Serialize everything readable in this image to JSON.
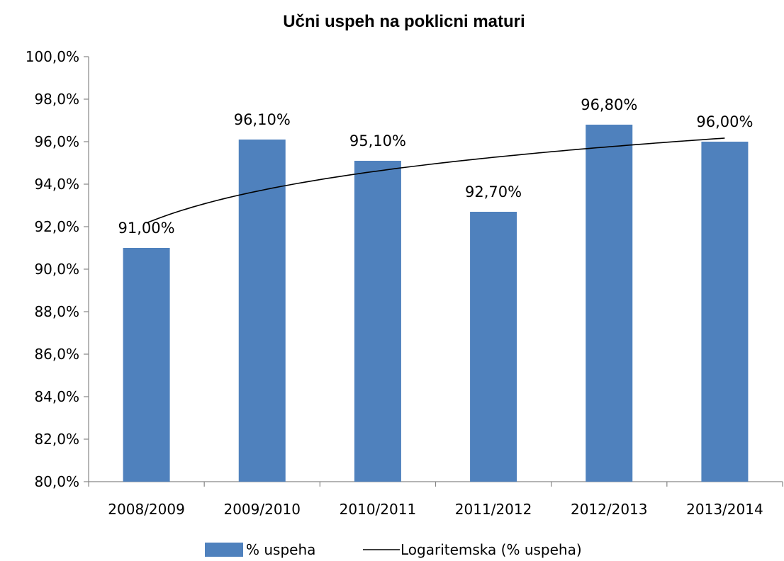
{
  "chart_data": {
    "type": "bar",
    "title": "Učni uspeh na poklicni maturi",
    "categories": [
      "2008/2009",
      "2009/2010",
      "2010/2011",
      "2011/2012",
      "2012/2013",
      "2013/2014"
    ],
    "series": [
      {
        "name": "% uspeha",
        "values": [
          91.0,
          96.1,
          95.1,
          92.7,
          96.8,
          96.0
        ],
        "data_labels": [
          "91,00%",
          "96,10%",
          "95,10%",
          "92,70%",
          "96,80%",
          "96,00%"
        ],
        "color": "#4F81BD"
      }
    ],
    "trendline": {
      "name": "Logaritemska (% uspeha)",
      "type": "logarithmic",
      "color": "#000000"
    },
    "ylim": [
      80,
      100
    ],
    "y_ticks": [
      80,
      82,
      84,
      86,
      88,
      90,
      92,
      94,
      96,
      98,
      100
    ],
    "y_tick_labels": [
      "80,0%",
      "82,0%",
      "84,0%",
      "86,0%",
      "88,0%",
      "90,0%",
      "92,0%",
      "94,0%",
      "96,0%",
      "98,0%",
      "100,0%"
    ],
    "xlabel": "",
    "ylabel": "",
    "grid": false,
    "legend_position": "bottom"
  }
}
